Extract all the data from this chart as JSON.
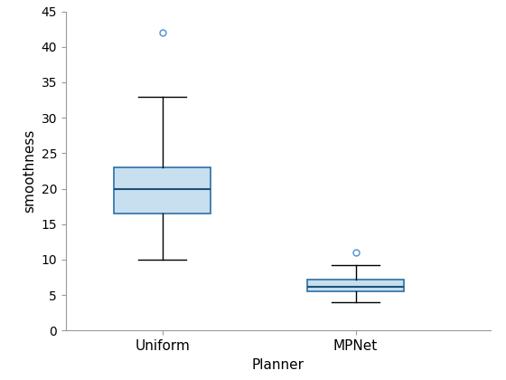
{
  "categories": [
    "Uniform",
    "MPNet"
  ],
  "xlabel": "Planner",
  "ylabel": "smoothness",
  "ylim": [
    0,
    45
  ],
  "yticks": [
    0,
    5,
    10,
    15,
    20,
    25,
    30,
    35,
    40,
    45
  ],
  "box_facecolor": "#C8DFF0",
  "box_edge_color": "#2B6FA6",
  "median_color": "#1A5276",
  "whisker_color": "#000000",
  "cap_color": "#000000",
  "flier_marker_edge_color": "#4A90D9",
  "uniform": {
    "q1": 16.5,
    "median": 20.0,
    "q3": 23.0,
    "whisker_low": 10.0,
    "whisker_high": 33.0,
    "outliers": [
      42.0
    ]
  },
  "mpnet": {
    "q1": 5.5,
    "median": 6.2,
    "q3": 7.2,
    "whisker_low": 4.0,
    "whisker_high": 9.2,
    "outliers": [
      11.0
    ]
  },
  "figsize": [
    5.6,
    4.2
  ],
  "dpi": 100
}
